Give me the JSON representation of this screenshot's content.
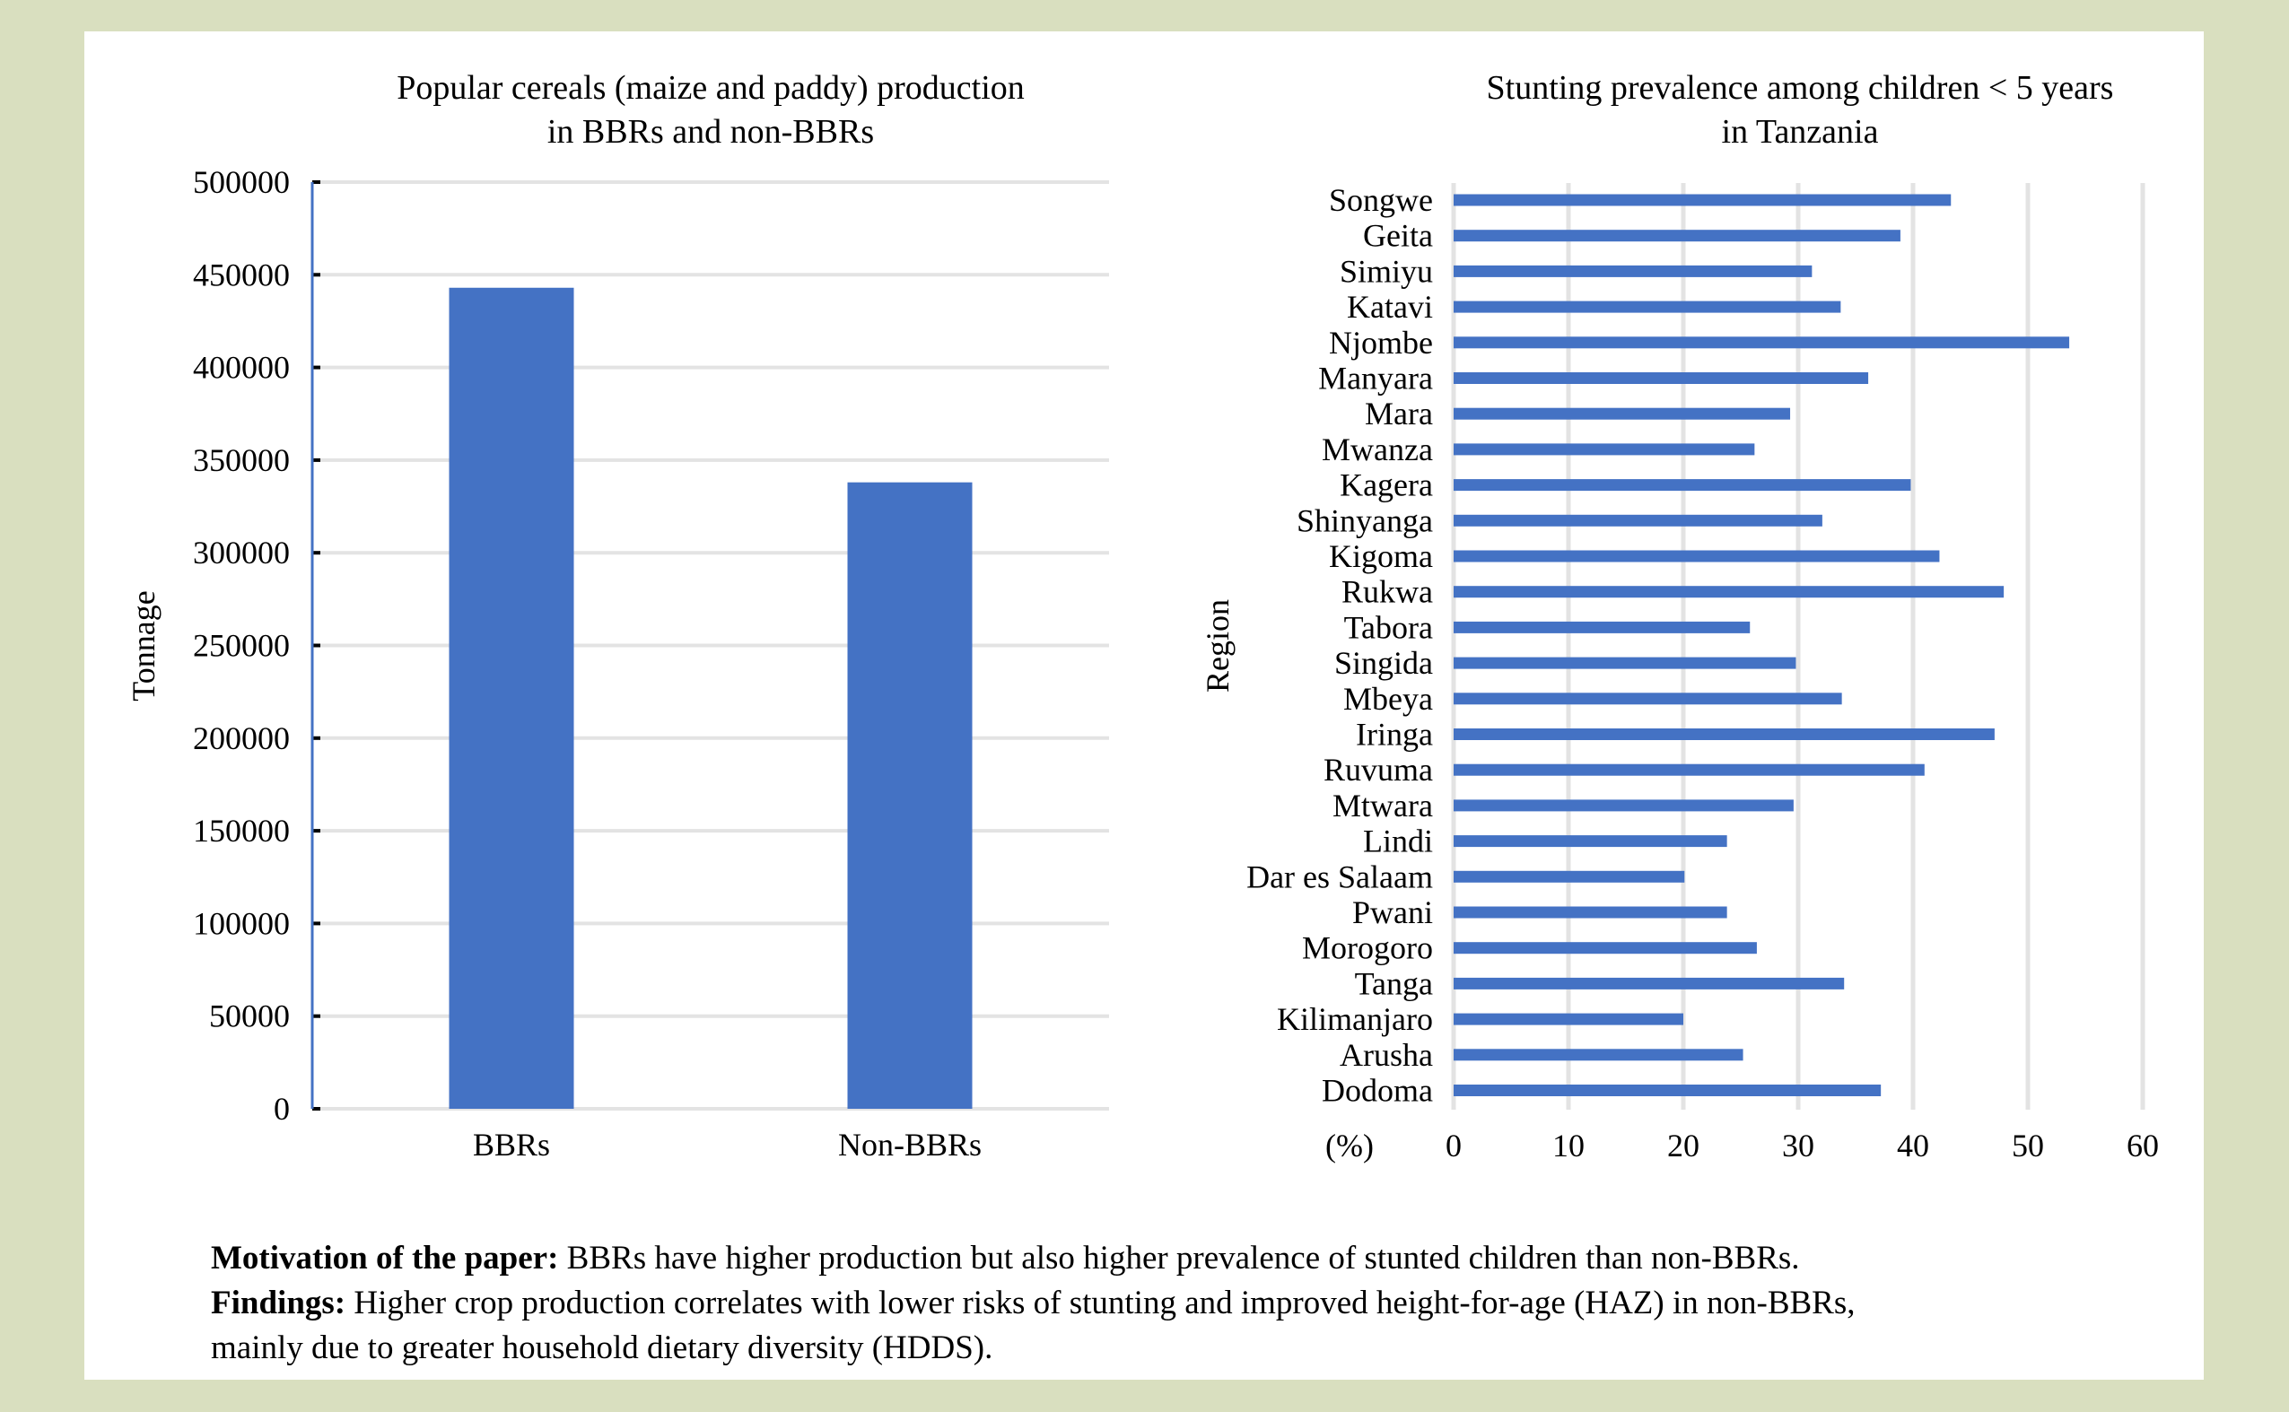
{
  "colors": {
    "background": "#d9dfbf",
    "panel": "#ffffff",
    "bar": "#4472c4",
    "grid": "#e3e3e3",
    "axis_line": "#4472c4",
    "tick_mark": "#000000"
  },
  "chart_data": [
    {
      "type": "bar",
      "orientation": "vertical",
      "title": "Popular cereals (maize and paddy) production\nin BBRs and non-BBRs",
      "title_lines": [
        "Popular cereals (maize and paddy) production",
        "in BBRs and non-BBRs"
      ],
      "xlabel": "",
      "ylabel": "Tonnage",
      "categories": [
        "BBRs",
        "Non-BBRs"
      ],
      "values": [
        443000,
        338000
      ],
      "ylim": [
        0,
        500000
      ],
      "yticks": [
        0,
        50000,
        100000,
        150000,
        200000,
        250000,
        300000,
        350000,
        400000,
        450000,
        500000
      ],
      "grid": true,
      "legend": "none"
    },
    {
      "type": "bar",
      "orientation": "horizontal",
      "title": "Stunting prevalence among children < 5 years\nin Tanzania",
      "title_lines": [
        "Stunting prevalence among children < 5 years",
        "in Tanzania"
      ],
      "xlabel": "(%)",
      "ylabel": "Region",
      "categories": [
        "Songwe",
        "Geita",
        "Simiyu",
        "Katavi",
        "Njombe",
        "Manyara",
        "Mara",
        "Mwanza",
        "Kagera",
        "Shinyanga",
        "Kigoma",
        "Rukwa",
        "Tabora",
        "Singida",
        "Mbeya",
        "Iringa",
        "Ruvuma",
        "Mtwara",
        "Lindi",
        "Dar es Salaam",
        "Pwani",
        "Morogoro",
        "Tanga",
        "Kilimanjaro",
        "Arusha",
        "Dodoma"
      ],
      "values": [
        43.3,
        38.9,
        31.2,
        33.7,
        53.6,
        36.1,
        29.3,
        26.2,
        39.8,
        32.1,
        42.3,
        47.9,
        25.8,
        29.8,
        33.8,
        47.1,
        41.0,
        29.6,
        23.8,
        20.1,
        23.8,
        26.4,
        34.0,
        20.0,
        25.2,
        37.2
      ],
      "xlim": [
        0,
        60
      ],
      "xticks": [
        0,
        10,
        20,
        30,
        40,
        50,
        60
      ],
      "grid": true,
      "legend": "none"
    }
  ],
  "footer": {
    "motivation_label": "Motivation of the paper:",
    "motivation_text": " BBRs have higher production but also higher prevalence of stunted children than non-BBRs.",
    "findings_label": "Findings:",
    "findings_text": " Higher crop production correlates with lower risks of stunting and improved height-for-age (HAZ) in non-BBRs,",
    "findings_text_line2": "mainly due to greater household dietary diversity (HDDS)."
  }
}
